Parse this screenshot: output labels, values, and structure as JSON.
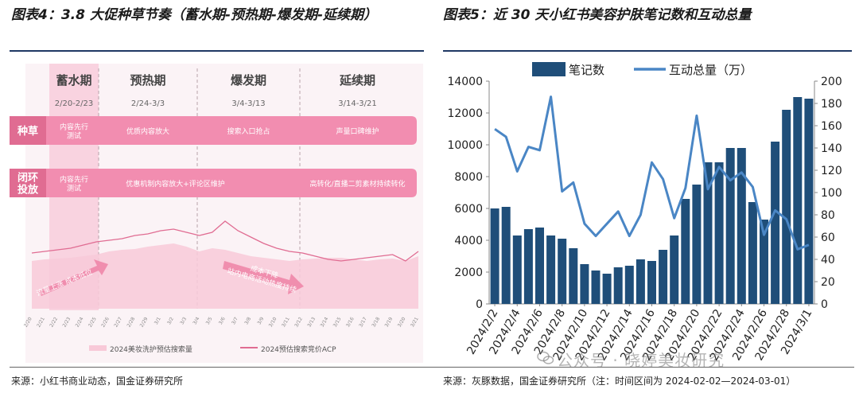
{
  "left_figure": {
    "title": "图表4：3.8 大促种草节奏（蓄水期-预热期-爆发期-延续期）",
    "source": "来源：小红书商业动态，国金证券研究所",
    "phases": [
      {
        "name": "蓄水期",
        "dates": "2/20-2/23"
      },
      {
        "name": "预热期",
        "dates": "2/24-3/3"
      },
      {
        "name": "爆发期",
        "dates": "3/4-3/13"
      },
      {
        "name": "延续期",
        "dates": "3/14-3/21"
      }
    ],
    "rows": [
      {
        "label": "种草",
        "items": [
          "内容先行\n测试",
          "优质内容放大",
          "搜索入口抢占",
          "声量口碑维护"
        ]
      },
      {
        "label": "闭环\n投放",
        "items": [
          "内容先行\n测试",
          "优惠机制内容放大+评论区维护",
          "",
          "高转化/直播二剪素材持续转化"
        ]
      }
    ],
    "arrows": [
      "流量上涨 成本低位",
      "成本下降\n站内电商活动热度持续"
    ],
    "x_ticks": [
      "2/20",
      "2/21",
      "2/22",
      "2/23",
      "2/24",
      "2/25",
      "2/26",
      "2/27",
      "2/28",
      "2/29",
      "3/1",
      "3/2",
      "3/3",
      "3/4",
      "3/5",
      "3/6",
      "3/7",
      "3/8",
      "3/9",
      "3/10",
      "3/11",
      "3/12",
      "3/13",
      "3/14",
      "3/15",
      "3/16",
      "3/17",
      "3/18",
      "3/19",
      "3/20",
      "3/21"
    ],
    "legend": [
      "2024美妆洗护预估搜索量",
      "2024预估搜索竞价ACP"
    ],
    "colors": {
      "pink_dark": "#e06c92",
      "pink_band": "#f28db0",
      "pink_light": "#f8c9d8"
    }
  },
  "right_figure": {
    "title": "图表5：近 30 天小红书美容护肤笔记数和互动总量",
    "source": "来源：灰豚数据，国金证券研究所（注：时间区间为 2024-02-02—2024-03-01）",
    "watermark": "公众号 · 晓婷美妆研究"
  },
  "chart_data": {
    "type": "bar",
    "categories": [
      "2024/2/2",
      "2024/2/3",
      "2024/2/4",
      "2024/2/5",
      "2024/2/6",
      "2024/2/7",
      "2024/2/8",
      "2024/2/9",
      "2024/2/10",
      "2024/2/11",
      "2024/2/12",
      "2024/2/13",
      "2024/2/14",
      "2024/2/15",
      "2024/2/16",
      "2024/2/17",
      "2024/2/18",
      "2024/2/19",
      "2024/2/20",
      "2024/2/21",
      "2024/2/22",
      "2024/2/23",
      "2024/2/24",
      "2024/2/25",
      "2024/2/26",
      "2024/2/27",
      "2024/2/28",
      "2024/2/29",
      "2024/3/1"
    ],
    "x_tick_labels": [
      "2024/2/2",
      "2024/2/4",
      "2024/2/6",
      "2024/2/8",
      "2024/2/10",
      "2024/2/12",
      "2024/2/14",
      "2024/2/16",
      "2024/2/18",
      "2024/2/20",
      "2024/2/22",
      "2024/2/24",
      "2024/2/26",
      "2024/2/28",
      "2024/3/1"
    ],
    "series": [
      {
        "name": "笔记数",
        "type": "bar",
        "axis": "left",
        "color": "#1f4e79",
        "values": [
          6000,
          6100,
          4300,
          4700,
          4800,
          4300,
          4100,
          3500,
          2500,
          2100,
          1900,
          2300,
          2400,
          2800,
          2700,
          3400,
          4300,
          6600,
          7500,
          8900,
          8900,
          9800,
          9800,
          6400,
          5300,
          10200,
          12200,
          13000,
          12900
        ]
      },
      {
        "name": "互动总量（万）",
        "type": "line",
        "axis": "right",
        "color": "#4a86c5",
        "values": [
          157,
          150,
          119,
          141,
          138,
          186,
          101,
          109,
          72,
          61,
          72,
          83,
          61,
          80,
          127,
          112,
          77,
          104,
          169,
          103,
          123,
          111,
          118,
          105,
          62,
          84,
          76,
          49,
          53
        ]
      }
    ],
    "ylim_left": [
      0,
      14000
    ],
    "yticks_left": [
      0,
      2000,
      4000,
      6000,
      8000,
      10000,
      12000,
      14000
    ],
    "ylim_right": [
      0,
      200
    ],
    "yticks_right": [
      0,
      20,
      40,
      60,
      80,
      100,
      120,
      140,
      160,
      180,
      200
    ],
    "legend_placement": "top",
    "grid": false
  }
}
